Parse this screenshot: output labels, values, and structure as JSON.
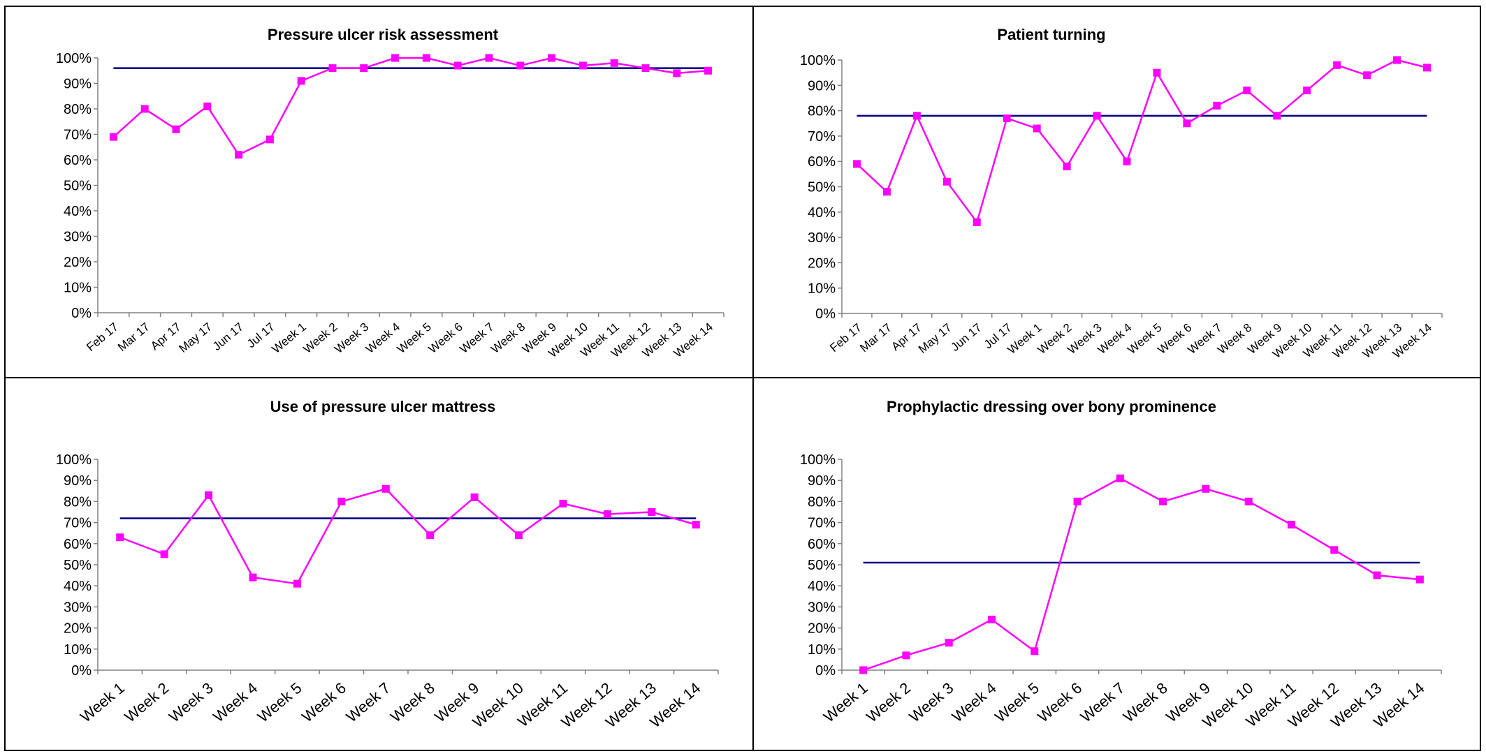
{
  "colors": {
    "series": "#ff00ff",
    "baseline": "#000080",
    "axis": "#808080",
    "text": "#000000"
  },
  "chart_data": [
    {
      "type": "line",
      "title": "Pressure ulcer risk assessment",
      "ylim": [
        0,
        100
      ],
      "yticks": [
        "0%",
        "10%",
        "20%",
        "30%",
        "40%",
        "50%",
        "60%",
        "70%",
        "80%",
        "90%",
        "100%"
      ],
      "categories": [
        "Feb 17",
        "Mar 17",
        "Apr 17",
        "May 17",
        "Jun 17",
        "Jul 17",
        "Week 1",
        "Week 2",
        "Week 3",
        "Week 4",
        "Week 5",
        "Week 6",
        "Week 7",
        "Week 8",
        "Week 9",
        "Week 10",
        "Week 11",
        "Week 12",
        "Week 13",
        "Week 14"
      ],
      "values": [
        69,
        80,
        72,
        81,
        62,
        68,
        91,
        96,
        96,
        100,
        100,
        97,
        100,
        97,
        100,
        97,
        98,
        96,
        94,
        95
      ],
      "baseline": 96,
      "grid": false,
      "marker": "square"
    },
    {
      "type": "line",
      "title": "Patient turning",
      "ylim": [
        0,
        100
      ],
      "yticks": [
        "0%",
        "10%",
        "20%",
        "30%",
        "40%",
        "50%",
        "60%",
        "70%",
        "80%",
        "90%",
        "100%"
      ],
      "categories": [
        "Feb 17",
        "Mar 17",
        "Apr 17",
        "May 17",
        "Jun 17",
        "Jul 17",
        "Week 1",
        "Week 2",
        "Week 3",
        "Week 4",
        "Week 5",
        "Week 6",
        "Week 7",
        "Week 8",
        "Week 9",
        "Week 10",
        "Week 11",
        "Week 12",
        "Week 13",
        "Week 14"
      ],
      "values": [
        59,
        48,
        78,
        52,
        36,
        77,
        73,
        58,
        78,
        60,
        95,
        75,
        82,
        88,
        78,
        88,
        98,
        94,
        100,
        97
      ],
      "baseline": 78,
      "grid": false,
      "marker": "square"
    },
    {
      "type": "line",
      "title": "Use of pressure ulcer mattress",
      "ylim": [
        0,
        100
      ],
      "yticks": [
        "0%",
        "10%",
        "20%",
        "30%",
        "40%",
        "50%",
        "60%",
        "70%",
        "80%",
        "90%",
        "100%"
      ],
      "categories": [
        "Week 1",
        "Week 2",
        "Week 3",
        "Week 4",
        "Week 5",
        "Week 6",
        "Week 7",
        "Week 8",
        "Week 9",
        "Week 10",
        "Week 11",
        "Week 12",
        "Week 13",
        "Week 14"
      ],
      "values": [
        63,
        55,
        83,
        44,
        41,
        80,
        86,
        64,
        82,
        64,
        79,
        74,
        75,
        69
      ],
      "baseline": 72,
      "grid": false,
      "marker": "square"
    },
    {
      "type": "line",
      "title": "Prophylactic dressing over bony prominence",
      "ylim": [
        0,
        100
      ],
      "yticks": [
        "0%",
        "10%",
        "20%",
        "30%",
        "40%",
        "50%",
        "60%",
        "70%",
        "80%",
        "90%",
        "100%"
      ],
      "categories": [
        "Week 1",
        "Week 2",
        "Week 3",
        "Week 4",
        "Week 5",
        "Week 6",
        "Week 7",
        "Week 8",
        "Week 9",
        "Week 10",
        "Week 11",
        "Week 12",
        "Week 13",
        "Week 14"
      ],
      "values": [
        0,
        7,
        13,
        24,
        9,
        80,
        91,
        80,
        86,
        80,
        69,
        57,
        45,
        43
      ],
      "baseline": 51,
      "grid": false,
      "marker": "square"
    }
  ]
}
